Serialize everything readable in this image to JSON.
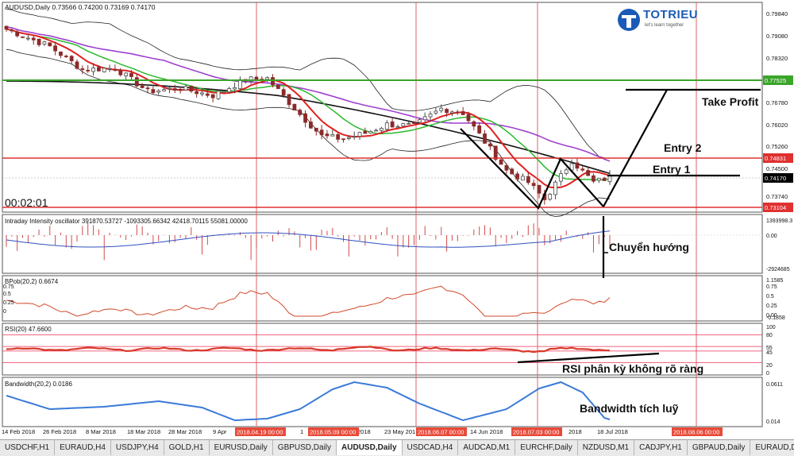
{
  "main_header": "AUDUSD,Daily  0.73566 0.74200 0.73169 0.74170",
  "timer": "00:02:01",
  "logo": {
    "name": "TOTRIEU",
    "tagline": "let's learn together"
  },
  "price_axis": [
    "0.79840",
    "0.79080",
    "0.78320",
    "0.77525",
    "0.76780",
    "0.76020",
    "0.75260",
    "0.74831",
    "0.74500",
    "0.74170",
    "0.73740",
    "0.73104"
  ],
  "current_price": "0.74170",
  "green_level_label": "0.77525",
  "red_level_upper_label": "0.74831",
  "red_level_lower_label": "0.73104",
  "annotations": {
    "take_profit": "Take Profit",
    "entry2": "Entry 2",
    "entry1": "Entry 1",
    "chuyen_huong": "Chuyển hướng",
    "rsi_note": "RSI phân kỳ không rõ ràng",
    "bandwidth_note": "Bandwidth tích luỹ"
  },
  "intensity": {
    "header": "Intraday Intensity oscillator 391870.53727 -1093305.66342 42418.70115 55081.00000",
    "axis": [
      "1393998.3",
      "0.00",
      "-2924685"
    ]
  },
  "bpb": {
    "header": "BPob(20,2) 0.6674",
    "left_axis": [
      "0.75",
      "0.5",
      "0.25",
      "0"
    ],
    "right_axis": [
      "1.1585",
      "0.75",
      "0.5",
      "0.25",
      "0.00",
      "-0.1858"
    ]
  },
  "rsi": {
    "header": "RSI(20) 47.6600",
    "axis": [
      "100",
      "80",
      "55",
      "45",
      "20",
      "0"
    ]
  },
  "bandwidth": {
    "header": "Bandwidth(20,2) 0.0186",
    "axis": [
      "0.0611",
      "0.014"
    ]
  },
  "date_axis": [
    "14 Feb 2018",
    "26 Feb 2018",
    "8 Mar 2018",
    "18 Mar 2018",
    "28 Mar 2018",
    "9 Apr",
    "1",
    "ay 2018",
    "23 May 201",
    "14 Jun 2018",
    "2018",
    "18 Jul 2018"
  ],
  "date_highlights": [
    "2018.04.19 00:00",
    "2018.05.09 00:00",
    "2018.06.07 00:00",
    "2018.07.03 00:00",
    "2018.08.06 00:00"
  ],
  "tabs": [
    "USDCHF,H1",
    "EURAUD,H4",
    "USDJPY,H4",
    "GOLD,H1",
    "EURUSD,Daily",
    "GBPUSD,Daily",
    "AUDUSD,Daily",
    "USDCAD,H4",
    "AUDCAD,M1",
    "EURCHF,Daily",
    "NZDUSD,M1",
    "CADJPY,H1",
    "GBPAUD,Daily",
    "EURAUD,Daily"
  ],
  "active_tab": "AUDUSD,Daily",
  "colors": {
    "bull": "#4a4a4a",
    "bear": "#8b2a2a",
    "red_ma": "#e02020",
    "green_ma": "#2db82d",
    "purple_ma": "#a040d0",
    "black_ma": "#111111",
    "indicator_blue": "#3050c0",
    "bandwidth_blue": "#3a7ad8",
    "rsi_red": "#d83a2a",
    "level_green": "#3aa52a",
    "level_red": "#e03030",
    "vline": "#d66"
  }
}
